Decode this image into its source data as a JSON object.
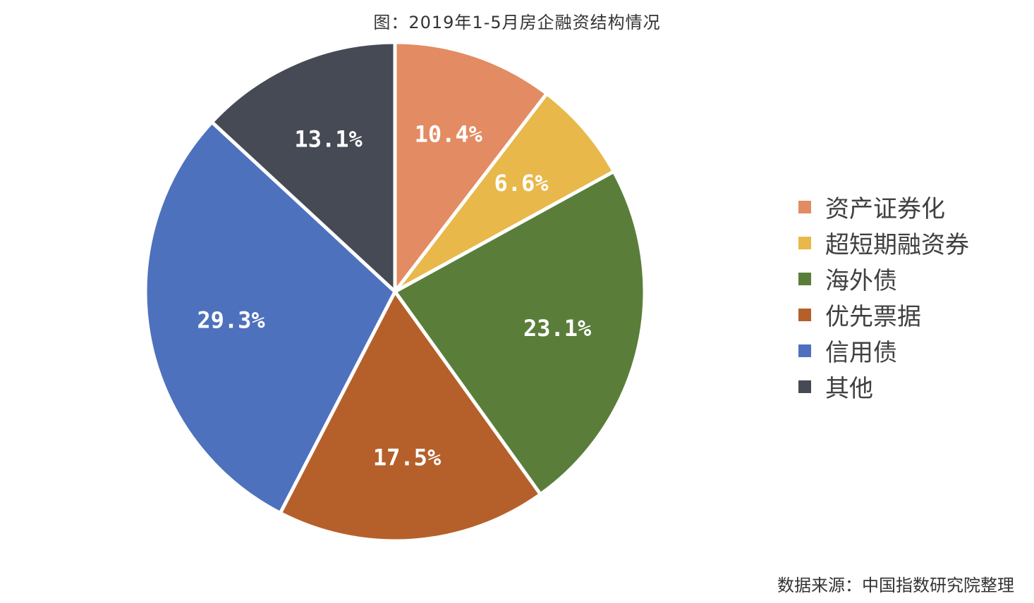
{
  "title": "图：2019年1-5月房企融资结构情况",
  "source": "数据来源：中国指数研究院整理",
  "chart_data": {
    "type": "pie",
    "title": "图：2019年1-5月房企融资结构情况",
    "legend_position": "right",
    "slices": [
      {
        "name": "资产证券化",
        "value": 10.4,
        "label": "10.4%",
        "color": "#E38B62"
      },
      {
        "name": "超短期融资券",
        "value": 6.6,
        "label": "6.6%",
        "color": "#E8B84A"
      },
      {
        "name": "海外债",
        "value": 23.1,
        "label": "23.1%",
        "color": "#5A7E3A"
      },
      {
        "name": "优先票据",
        "value": 17.5,
        "label": "17.5%",
        "color": "#B5602A"
      },
      {
        "name": "信用债",
        "value": 29.3,
        "label": "29.3%",
        "color": "#4E71BE"
      },
      {
        "name": "其他",
        "value": 13.1,
        "label": "13.1%",
        "color": "#464A54"
      }
    ]
  }
}
